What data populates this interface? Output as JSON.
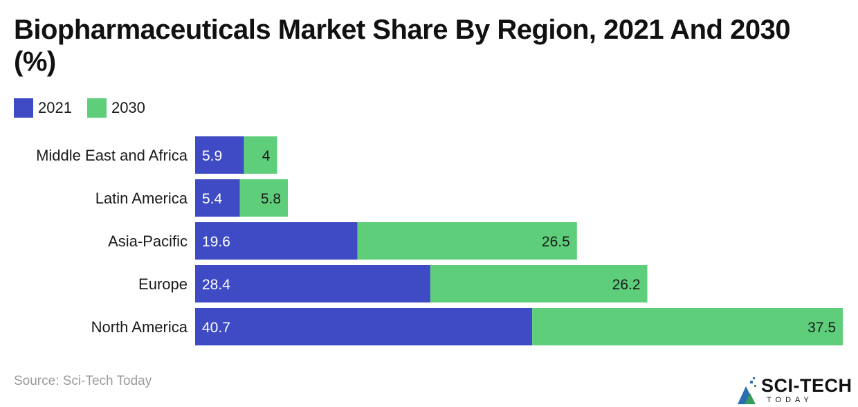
{
  "chart_data": {
    "type": "bar",
    "orientation": "horizontal",
    "stacked": true,
    "title": "Biopharmaceuticals Market Share By Region, 2021 And 2030 (%)",
    "categories": [
      "Middle East and Africa",
      "Latin America",
      "Asia-Pacific",
      "Europe",
      "North America"
    ],
    "series": [
      {
        "name": "2021",
        "color": "#3F4BC4",
        "values": [
          5.9,
          5.4,
          19.6,
          28.4,
          40.7
        ]
      },
      {
        "name": "2030",
        "color": "#5ECE7B",
        "values": [
          4,
          5.8,
          26.5,
          26.2,
          37.5
        ]
      }
    ],
    "legend_position": "top-left",
    "grid": false
  },
  "source": "Source: Sci-Tech Today",
  "logo": {
    "main": "SCI-TECH",
    "sub": "TODAY",
    "icon": "sci-tech-logo-icon"
  }
}
